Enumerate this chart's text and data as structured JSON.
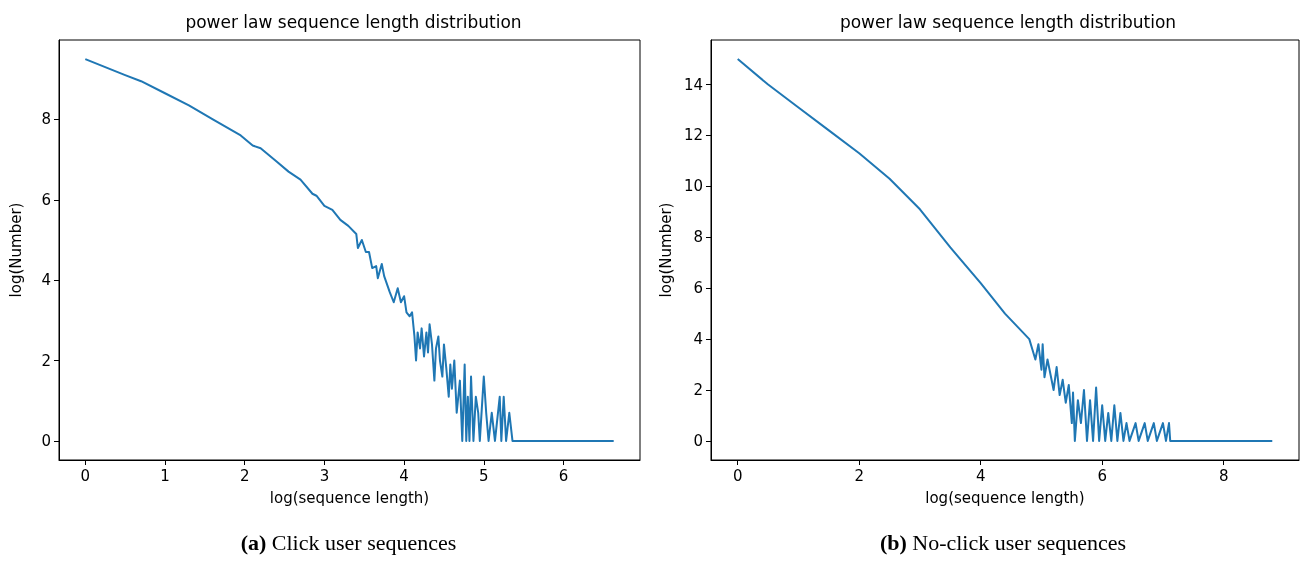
{
  "chart_data": [
    {
      "type": "line",
      "title": "power law sequence length distribution",
      "xlabel": "log(sequence length)",
      "ylabel": "log(Number)",
      "annotations": [
        "(a) Click user sequences"
      ],
      "xlim": [
        -0.33,
        6.96
      ],
      "ylim": [
        -0.475,
        9.975
      ],
      "xticks": [
        0,
        1,
        2,
        3,
        4,
        5,
        6
      ],
      "yticks": [
        0,
        2,
        4,
        6,
        8
      ],
      "grid": false,
      "series": [
        {
          "color": "#1f77b4",
          "x": [
            0,
            0.5,
            0.7,
            1,
            1.3,
            1.6,
            1.95,
            2.1,
            2.2,
            2.4,
            2.55,
            2.7,
            2.85,
            2.9,
            3.0,
            3.1,
            3.2,
            3.3,
            3.4,
            3.42,
            3.47,
            3.52,
            3.56,
            3.6,
            3.65,
            3.67,
            3.72,
            3.75,
            3.82,
            3.87,
            3.92,
            3.96,
            4.0,
            4.03,
            4.07,
            4.1,
            4.13,
            4.15,
            4.17,
            4.2,
            4.22,
            4.25,
            4.28,
            4.3,
            4.32,
            4.35,
            4.38,
            4.4,
            4.43,
            4.45,
            4.48,
            4.5,
            4.53,
            4.56,
            4.58,
            4.6,
            4.63,
            4.66,
            4.7,
            4.73,
            4.76,
            4.78,
            4.8,
            4.82,
            4.84,
            4.87,
            4.9,
            4.93,
            4.95,
            5.0,
            5.03,
            5.06,
            5.1,
            5.14,
            5.2,
            5.22,
            5.25,
            5.28,
            5.32,
            5.36,
            6.63
          ],
          "values": [
            9.5,
            9.1,
            8.95,
            8.65,
            8.35,
            8.0,
            7.6,
            7.35,
            7.28,
            6.95,
            6.7,
            6.5,
            6.15,
            6.1,
            5.85,
            5.75,
            5.5,
            5.35,
            5.15,
            4.8,
            5.0,
            4.7,
            4.7,
            4.3,
            4.35,
            4.05,
            4.4,
            4.1,
            3.7,
            3.45,
            3.8,
            3.45,
            3.6,
            3.2,
            3.1,
            3.2,
            2.6,
            2.0,
            2.7,
            2.3,
            2.8,
            2.1,
            2.7,
            2.2,
            2.9,
            2.4,
            1.5,
            2.3,
            2.6,
            2.0,
            1.6,
            2.4,
            1.8,
            1.1,
            1.9,
            1.3,
            2.0,
            0.7,
            1.5,
            0,
            1.9,
            0,
            1.1,
            0,
            1.6,
            0,
            1.1,
            0.7,
            0,
            1.6,
            0.7,
            0,
            0.7,
            0,
            1.1,
            0,
            1.1,
            0,
            0.7,
            0,
            0
          ]
        }
      ]
    },
    {
      "type": "line",
      "title": "power law sequence length distribution",
      "xlabel": "log(sequence length)",
      "ylabel": "log(Number)",
      "annotations": [
        "(b) No-click user sequences"
      ],
      "xlim": [
        -0.44,
        9.24
      ],
      "ylim": [
        -0.75,
        15.75
      ],
      "xticks": [
        0,
        2,
        4,
        6,
        8
      ],
      "yticks": [
        0,
        2,
        4,
        6,
        8,
        10,
        12,
        14
      ],
      "grid": false,
      "series": [
        {
          "color": "#1f77b4",
          "x": [
            0,
            0.5,
            1,
            1.5,
            2,
            2.5,
            3,
            3.5,
            4,
            4.2,
            4.4,
            4.6,
            4.8,
            4.85,
            4.9,
            4.95,
            5.0,
            5.02,
            5.05,
            5.1,
            5.15,
            5.2,
            5.25,
            5.3,
            5.35,
            5.4,
            5.45,
            5.5,
            5.52,
            5.55,
            5.6,
            5.65,
            5.7,
            5.75,
            5.8,
            5.85,
            5.9,
            5.95,
            6.0,
            6.05,
            6.1,
            6.15,
            6.2,
            6.25,
            6.3,
            6.35,
            6.4,
            6.45,
            6.55,
            6.6,
            6.7,
            6.75,
            6.85,
            6.9,
            7.0,
            7.05,
            7.1,
            7.12,
            8.8
          ],
          "values": [
            15,
            14.0,
            13.1,
            12.2,
            11.3,
            10.3,
            9.1,
            7.6,
            6.2,
            5.6,
            5.0,
            4.5,
            4.0,
            3.6,
            3.2,
            3.8,
            2.8,
            3.8,
            2.5,
            3.2,
            2.6,
            2.0,
            2.9,
            1.8,
            2.4,
            1.5,
            2.2,
            0.7,
            1.9,
            0,
            1.6,
            0.7,
            2.0,
            0,
            1.6,
            0,
            2.1,
            0,
            1.4,
            0,
            1.1,
            0,
            1.4,
            0,
            1.1,
            0,
            0.7,
            0,
            0.7,
            0,
            0.7,
            0,
            0.7,
            0,
            0.7,
            0,
            0.7,
            0,
            0
          ]
        }
      ]
    }
  ]
}
